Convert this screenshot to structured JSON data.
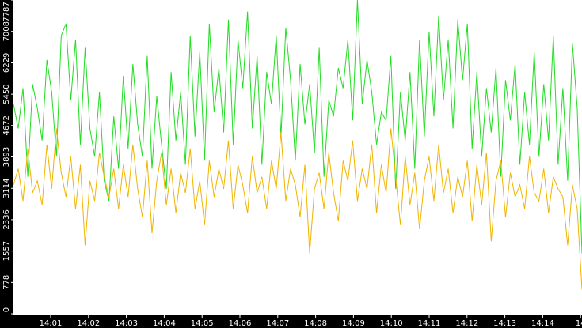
{
  "chart_data": {
    "type": "line",
    "ylim": [
      0,
      7787
    ],
    "yticks": [
      0,
      778,
      1557,
      2336,
      3114,
      3893,
      4672,
      5450,
      6229,
      7008,
      7787
    ],
    "xtick_labels": [
      "14:01",
      "14:02",
      "14:03",
      "14:04",
      "14:05",
      "14:06",
      "14:07",
      "14:08",
      "14:09",
      "14:10",
      "14:11",
      "14:12",
      "14:13",
      "14:14",
      "14"
    ],
    "series": [
      {
        "color": "#22dd22",
        "values": [
          5200,
          4600,
          5600,
          3400,
          5700,
          5100,
          4300,
          6300,
          5500,
          3900,
          6900,
          7200,
          5300,
          6800,
          4200,
          6600,
          4600,
          3900,
          5500,
          3300,
          2800,
          4900,
          3600,
          5900,
          4100,
          6200,
          4700,
          3900,
          6400,
          3600,
          5400,
          4200,
          3100,
          6000,
          4300,
          5500,
          3700,
          6900,
          4400,
          6500,
          3800,
          7200,
          5000,
          6100,
          4500,
          7300,
          4200,
          6800,
          5600,
          7500,
          4600,
          6400,
          3700,
          6000,
          5200,
          6900,
          4400,
          7100,
          5800,
          3800,
          6200,
          4700,
          5700,
          4000,
          6600,
          3400,
          5300,
          4900,
          6100,
          5600,
          6800,
          4800,
          7787,
          5200,
          6300,
          5500,
          4200,
          5000,
          4800,
          6400,
          3100,
          5500,
          4300,
          6000,
          3600,
          6800,
          4400,
          7000,
          4900,
          7400,
          5300,
          6800,
          4600,
          7300,
          5800,
          7200,
          4100,
          6000,
          3900,
          5600,
          4500,
          6100,
          3400,
          5800,
          4800,
          6200,
          3700,
          5500,
          4200,
          6500,
          3900,
          5700,
          4300,
          6900,
          3700,
          5600,
          3300,
          6700,
          5100,
          1500
        ]
      },
      {
        "color": "#f0b400",
        "values": [
          3200,
          3600,
          2800,
          4100,
          3000,
          3300,
          2700,
          4200,
          3100,
          4600,
          3500,
          2900,
          3900,
          2600,
          3700,
          1700,
          3300,
          2800,
          4000,
          3400,
          2900,
          3600,
          2600,
          3700,
          2900,
          4200,
          3100,
          2400,
          3800,
          2000,
          3300,
          4000,
          2700,
          3600,
          2500,
          3500,
          3000,
          4100,
          2600,
          3300,
          2200,
          3800,
          2900,
          3600,
          3100,
          4300,
          2600,
          3700,
          3200,
          2500,
          3900,
          3000,
          3400,
          2600,
          3800,
          3100,
          4500,
          2800,
          3600,
          3200,
          2400,
          3700,
          1500,
          3100,
          3500,
          2600,
          4000,
          3000,
          2300,
          3800,
          3300,
          4300,
          2800,
          3600,
          3100,
          4200,
          2500,
          3700,
          3000,
          4600,
          3400,
          2200,
          3900,
          2700,
          3500,
          2100,
          3300,
          3900,
          2800,
          4200,
          3000,
          3600,
          2500,
          3400,
          2900,
          3800,
          2300,
          3700,
          2700,
          4000,
          1800,
          3300,
          3800,
          2400,
          3500,
          2900,
          3200,
          2600,
          3900,
          3000,
          2800,
          3600,
          2500,
          3400,
          3100,
          2900,
          1700,
          3200,
          2600,
          600
        ]
      }
    ]
  }
}
